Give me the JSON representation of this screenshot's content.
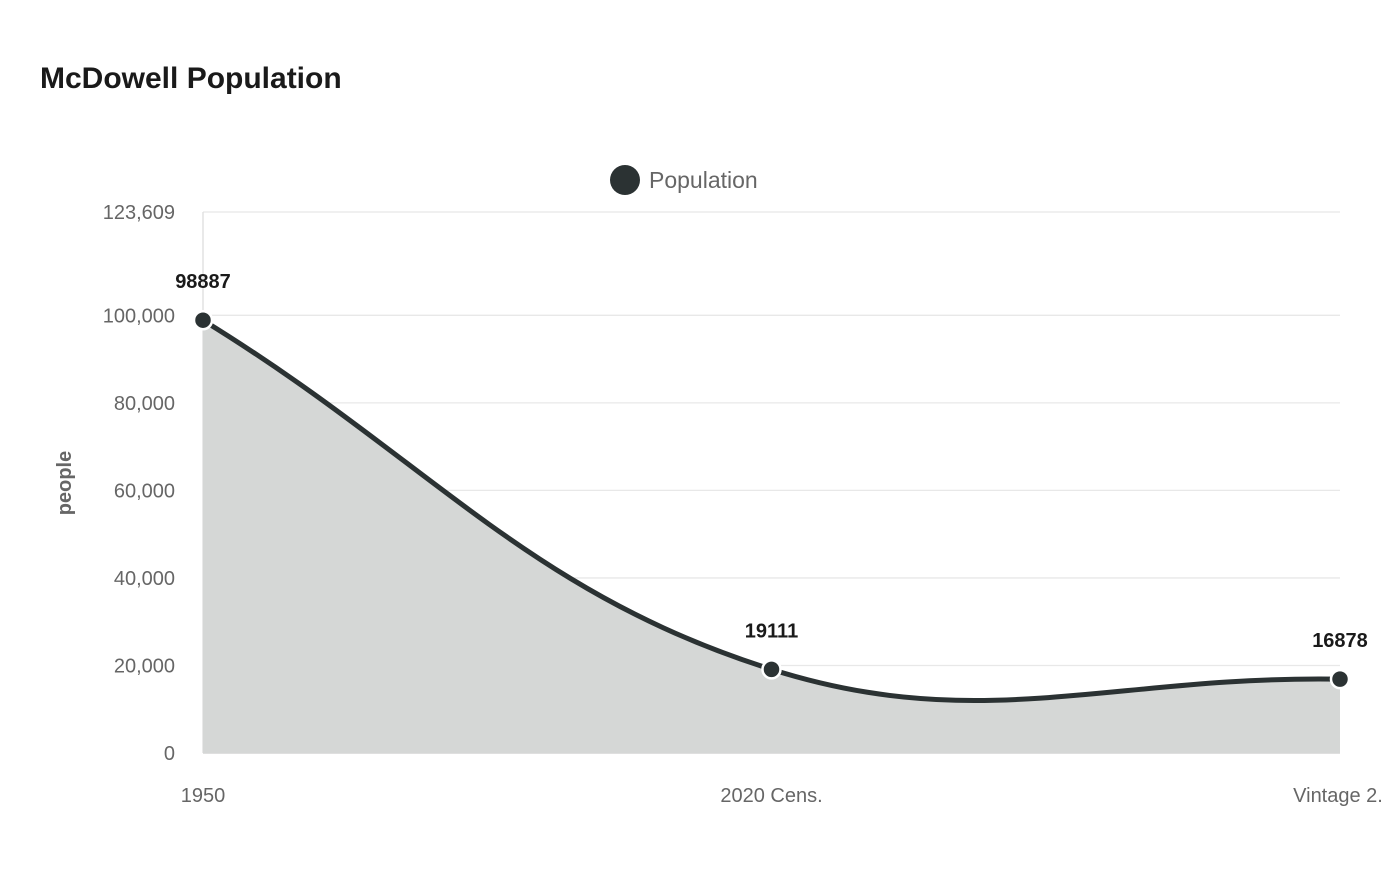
{
  "chart_data": {
    "type": "area",
    "title": "McDowell Population",
    "ylabel": "people",
    "xlabel": "",
    "categories": [
      "1950",
      "2020 Cens.",
      "Vintage 2."
    ],
    "series": [
      {
        "name": "Population",
        "values": [
          98887,
          19111,
          16878
        ],
        "color": "#2b3233",
        "fill": "#d5d7d6"
      }
    ],
    "ylim": [
      0,
      123609
    ],
    "yticks": [
      0,
      20000,
      40000,
      60000,
      80000,
      100000,
      123609
    ],
    "ytick_labels": [
      "0",
      "20,000",
      "40,000",
      "60,000",
      "80,000",
      "100,000",
      "123,609"
    ],
    "data_labels": [
      "98887",
      "19111",
      "16878"
    ],
    "grid": true,
    "legend": "top"
  }
}
